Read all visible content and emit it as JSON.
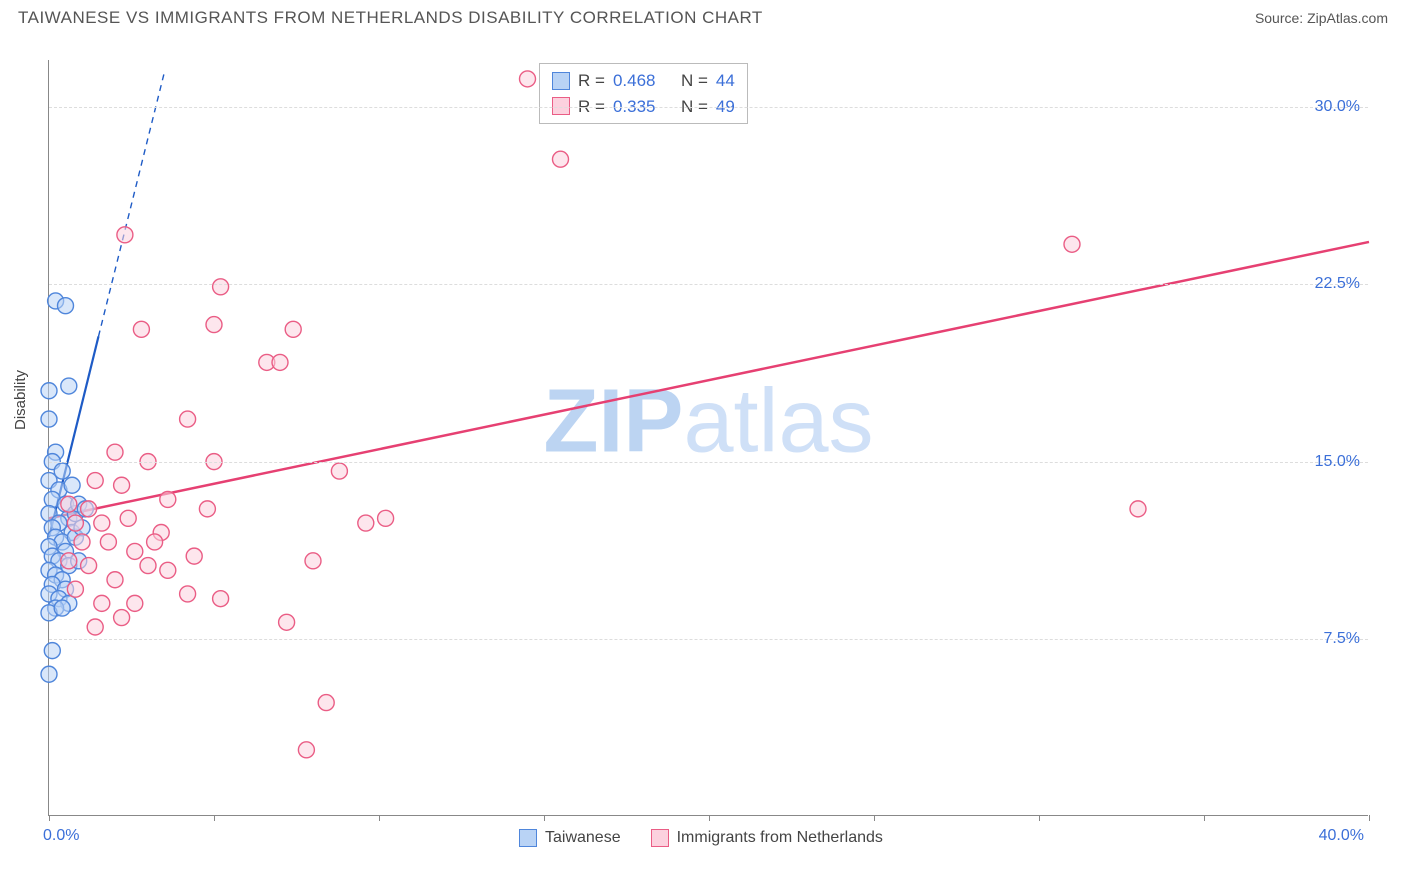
{
  "title": "TAIWANESE VS IMMIGRANTS FROM NETHERLANDS DISABILITY CORRELATION CHART",
  "source": "Source: ZipAtlas.com",
  "y_axis_label": "Disability",
  "watermark": {
    "bold": "ZIP",
    "rest": "atlas"
  },
  "chart": {
    "type": "scatter",
    "xlim": [
      0,
      40
    ],
    "ylim": [
      0,
      32
    ],
    "y_ticks": [
      7.5,
      15.0,
      22.5,
      30.0
    ],
    "y_tick_labels": [
      "7.5%",
      "15.0%",
      "22.5%",
      "30.0%"
    ],
    "x_ticks": [
      0,
      5,
      10,
      15,
      20,
      25,
      30,
      35,
      40
    ],
    "x_min_label": "0.0%",
    "x_max_label": "40.0%",
    "grid_color": "#dddddd",
    "axis_color": "#888888",
    "background_color": "#ffffff",
    "marker_radius": 8,
    "marker_stroke_width": 1.4,
    "series": [
      {
        "name": "Taiwanese",
        "fill": "#b9d3f5",
        "stroke": "#4f86db",
        "fill_opacity": 0.55,
        "R": "0.468",
        "N": "44",
        "trend": {
          "solid": [
            [
              0.0,
              11.8
            ],
            [
              1.5,
              20.3
            ]
          ],
          "dashed": [
            [
              1.5,
              20.3
            ],
            [
              3.5,
              31.5
            ]
          ],
          "color": "#1e5bc6",
          "width": 2.2
        },
        "points": [
          [
            0.2,
            21.8
          ],
          [
            0.5,
            21.6
          ],
          [
            0.0,
            18.0
          ],
          [
            0.6,
            18.2
          ],
          [
            0.0,
            16.8
          ],
          [
            0.2,
            15.4
          ],
          [
            0.1,
            15.0
          ],
          [
            0.4,
            14.6
          ],
          [
            0.0,
            14.2
          ],
          [
            0.3,
            13.8
          ],
          [
            0.1,
            13.4
          ],
          [
            0.5,
            13.2
          ],
          [
            0.0,
            12.8
          ],
          [
            0.6,
            12.6
          ],
          [
            0.3,
            12.4
          ],
          [
            0.1,
            12.2
          ],
          [
            0.7,
            12.0
          ],
          [
            0.2,
            11.8
          ],
          [
            0.4,
            11.6
          ],
          [
            0.0,
            11.4
          ],
          [
            0.5,
            11.2
          ],
          [
            0.1,
            11.0
          ],
          [
            0.3,
            10.8
          ],
          [
            0.6,
            10.6
          ],
          [
            0.0,
            10.4
          ],
          [
            0.2,
            10.2
          ],
          [
            0.4,
            10.0
          ],
          [
            0.1,
            9.8
          ],
          [
            0.5,
            9.6
          ],
          [
            0.0,
            9.4
          ],
          [
            0.3,
            9.2
          ],
          [
            0.6,
            9.0
          ],
          [
            0.2,
            8.8
          ],
          [
            0.0,
            8.6
          ],
          [
            0.1,
            7.0
          ],
          [
            0.0,
            6.0
          ],
          [
            0.7,
            14.0
          ],
          [
            0.8,
            12.8
          ],
          [
            0.9,
            13.2
          ],
          [
            0.8,
            11.8
          ],
          [
            0.9,
            10.8
          ],
          [
            1.0,
            12.2
          ],
          [
            1.1,
            13.0
          ],
          [
            0.4,
            8.8
          ]
        ]
      },
      {
        "name": "Immigrants from Netherlands",
        "fill": "#fcd1de",
        "stroke": "#ea5d85",
        "fill_opacity": 0.55,
        "R": "0.335",
        "N": "49",
        "trend": {
          "solid": [
            [
              0.0,
              12.6
            ],
            [
              40.0,
              24.3
            ]
          ],
          "dashed": null,
          "color": "#e64072",
          "width": 2.5
        },
        "points": [
          [
            14.5,
            31.2
          ],
          [
            15.5,
            27.8
          ],
          [
            2.3,
            24.6
          ],
          [
            31.0,
            24.2
          ],
          [
            5.2,
            22.4
          ],
          [
            5.0,
            20.8
          ],
          [
            7.4,
            20.6
          ],
          [
            2.8,
            20.6
          ],
          [
            6.6,
            19.2
          ],
          [
            7.0,
            19.2
          ],
          [
            4.2,
            16.8
          ],
          [
            33.0,
            13.0
          ],
          [
            2.0,
            15.4
          ],
          [
            3.0,
            15.0
          ],
          [
            5.0,
            15.0
          ],
          [
            8.8,
            14.6
          ],
          [
            2.2,
            14.0
          ],
          [
            3.6,
            13.4
          ],
          [
            4.8,
            13.0
          ],
          [
            1.2,
            13.0
          ],
          [
            2.4,
            12.6
          ],
          [
            1.6,
            12.4
          ],
          [
            10.2,
            12.6
          ],
          [
            3.4,
            12.0
          ],
          [
            9.6,
            12.4
          ],
          [
            1.0,
            11.6
          ],
          [
            2.6,
            11.2
          ],
          [
            4.4,
            11.0
          ],
          [
            1.2,
            10.6
          ],
          [
            3.0,
            10.6
          ],
          [
            8.0,
            10.8
          ],
          [
            3.6,
            10.4
          ],
          [
            2.0,
            10.0
          ],
          [
            0.8,
            9.6
          ],
          [
            4.2,
            9.4
          ],
          [
            1.6,
            9.0
          ],
          [
            2.6,
            9.0
          ],
          [
            5.2,
            9.2
          ],
          [
            2.2,
            8.4
          ],
          [
            7.2,
            8.2
          ],
          [
            1.4,
            8.0
          ],
          [
            0.6,
            10.8
          ],
          [
            8.4,
            4.8
          ],
          [
            7.8,
            2.8
          ],
          [
            0.8,
            12.4
          ],
          [
            1.4,
            14.2
          ],
          [
            1.8,
            11.6
          ],
          [
            0.6,
            13.2
          ],
          [
            3.2,
            11.6
          ]
        ]
      }
    ]
  },
  "legend_top": {
    "rows": [
      {
        "swatch_fill": "#b9d3f5",
        "swatch_stroke": "#4f86db",
        "r_label": "R =",
        "r_val": "0.468",
        "n_label": "N =",
        "n_val": "44"
      },
      {
        "swatch_fill": "#fcd1de",
        "swatch_stroke": "#ea5d85",
        "r_label": "R =",
        "r_val": "0.335",
        "n_label": "N =",
        "n_val": "49"
      }
    ]
  },
  "legend_bottom": [
    {
      "swatch_fill": "#b9d3f5",
      "swatch_stroke": "#4f86db",
      "label": "Taiwanese"
    },
    {
      "swatch_fill": "#fcd1de",
      "swatch_stroke": "#ea5d85",
      "label": "Immigrants from Netherlands"
    }
  ]
}
